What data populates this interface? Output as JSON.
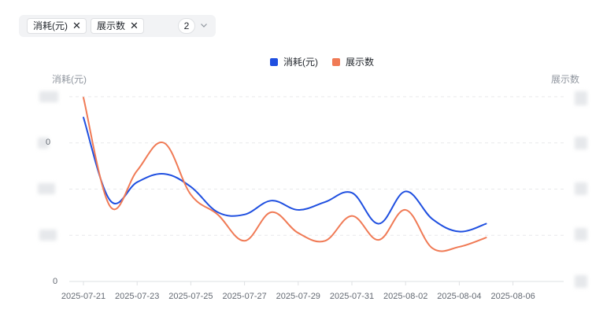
{
  "filter_bar": {
    "tags": [
      {
        "label": "消耗(元)"
      },
      {
        "label": "展示数"
      }
    ],
    "close_glyph": "✕",
    "selected_count": "2",
    "dropdown_icon": "chevron-down-icon"
  },
  "legend": {
    "items": [
      {
        "label": "消耗(元)",
        "color": "#1f4fe0"
      },
      {
        "label": "展示数",
        "color": "#f07a55"
      }
    ]
  },
  "axes": {
    "left_title": "消耗(元)",
    "right_title": "展示数",
    "left_zero_label": "0",
    "left_partial_label": "0"
  },
  "chart_data": {
    "type": "line",
    "x": [
      "2025-07-21",
      "2025-07-22",
      "2025-07-23",
      "2025-07-24",
      "2025-07-25",
      "2025-07-26",
      "2025-07-27",
      "2025-07-28",
      "2025-07-29",
      "2025-07-30",
      "2025-07-31",
      "2025-08-01",
      "2025-08-02",
      "2025-08-03",
      "2025-08-04",
      "2025-08-05",
      "2025-08-06"
    ],
    "x_tick_labels": [
      "2025-07-21",
      "2025-07-23",
      "2025-07-25",
      "2025-07-27",
      "2025-07-29",
      "2025-07-31",
      "2025-08-02",
      "2025-08-04",
      "2025-08-06"
    ],
    "series": [
      {
        "name": "消耗(元)",
        "color": "#1f4fe0",
        "axis": "left",
        "values": [
          3.55,
          1.75,
          2.15,
          2.33,
          2.05,
          1.5,
          1.45,
          1.75,
          1.55,
          1.72,
          1.92,
          1.25,
          1.95,
          1.35,
          1.08,
          1.25,
          null
        ]
      },
      {
        "name": "展示数",
        "color": "#f07a55",
        "axis": "right",
        "values": [
          3.98,
          1.62,
          2.4,
          3.0,
          1.88,
          1.45,
          0.88,
          1.5,
          1.05,
          0.88,
          1.42,
          0.9,
          1.55,
          0.72,
          0.75,
          0.95,
          null
        ]
      }
    ],
    "y_normalized_range": [
      0,
      4
    ],
    "grid": true,
    "legend_position": "top-center"
  }
}
